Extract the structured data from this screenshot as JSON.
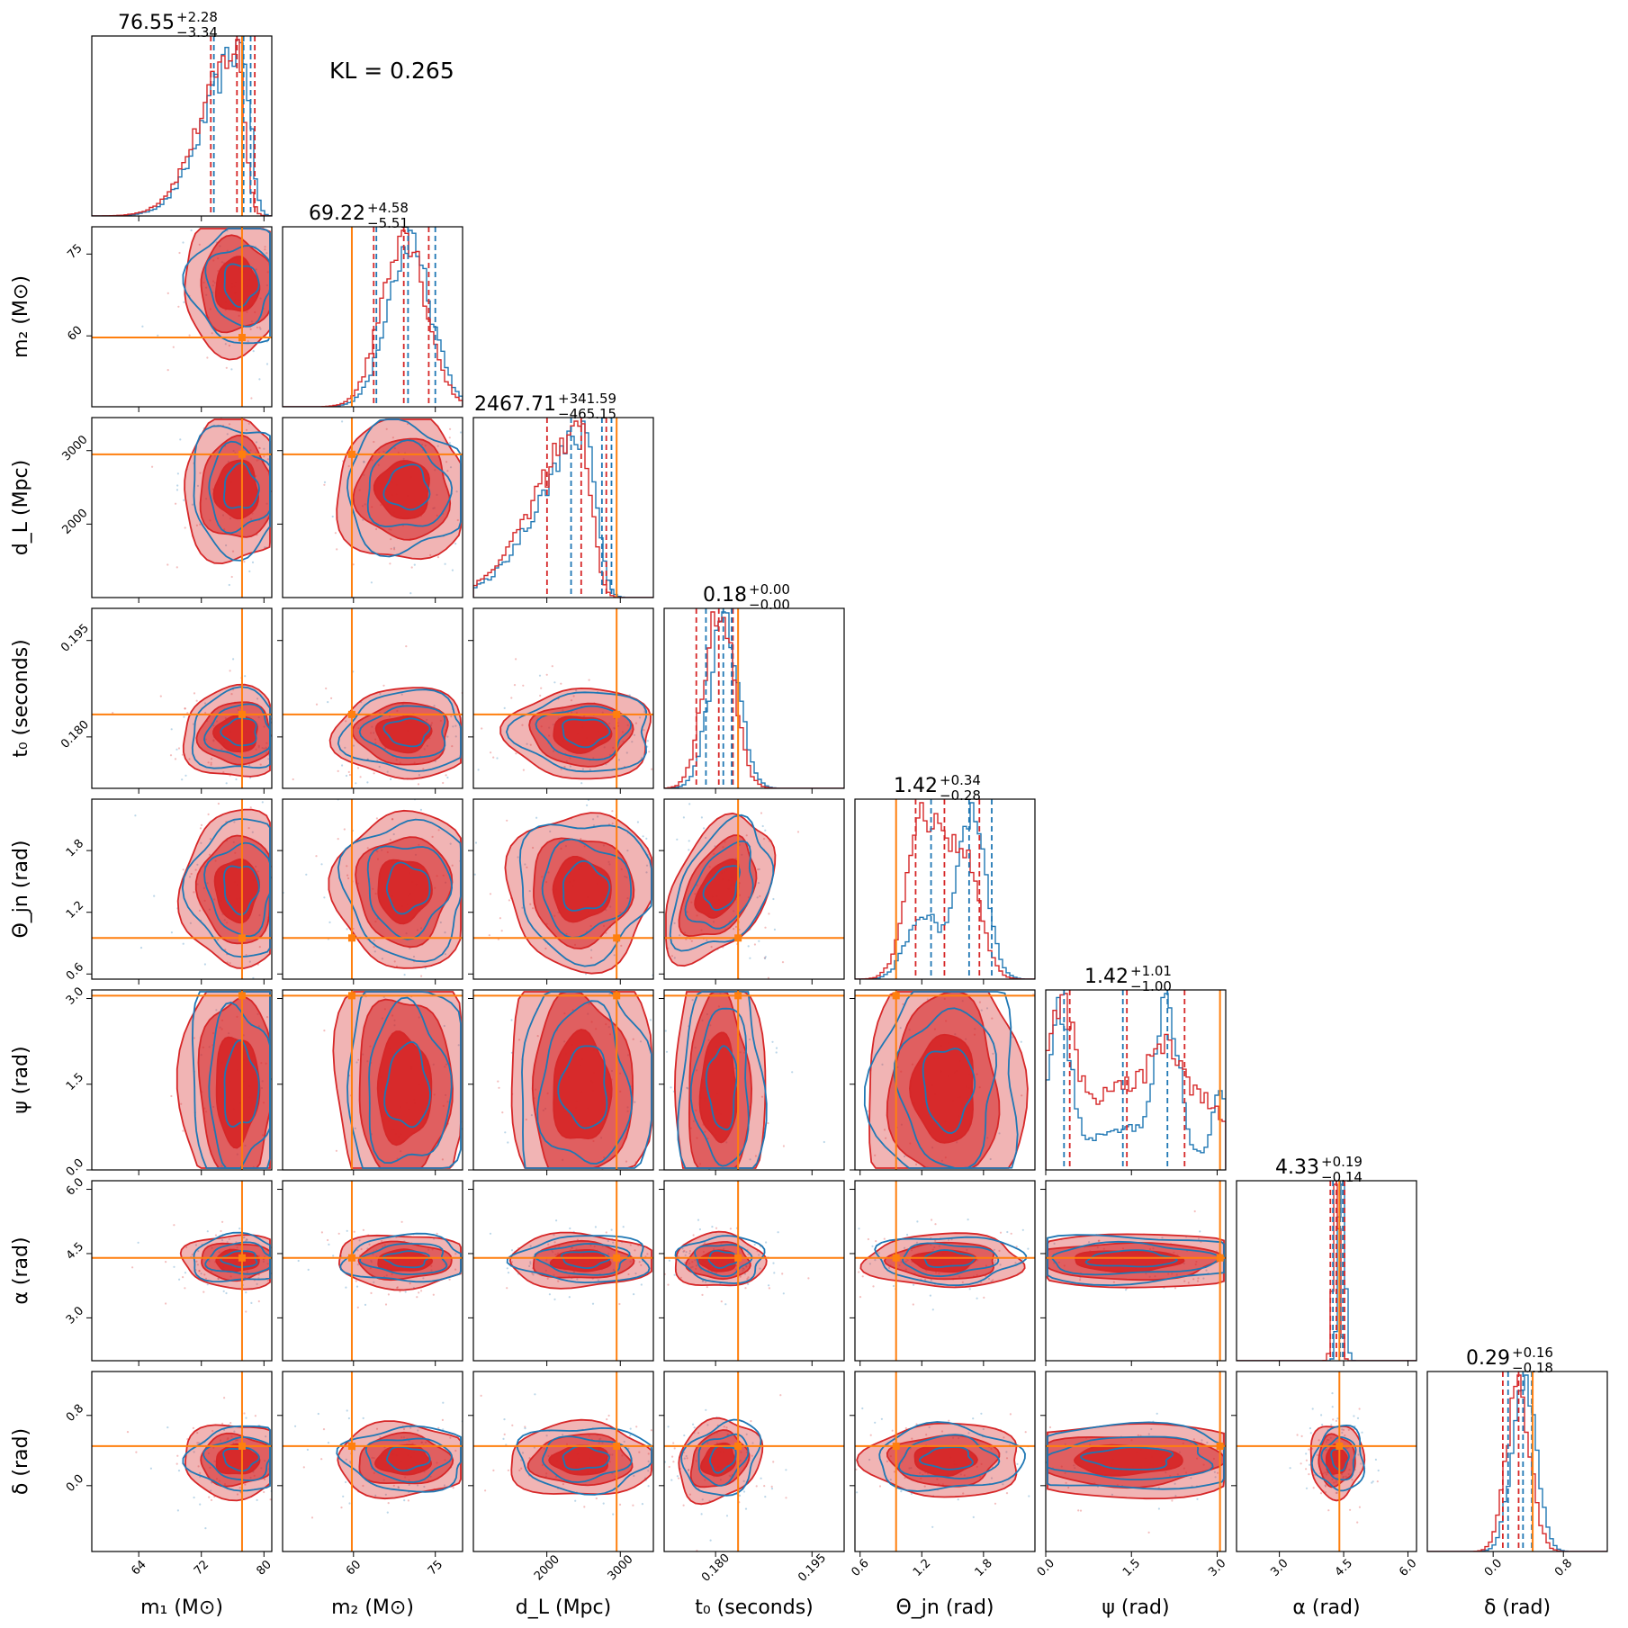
{
  "kl": "KL = 0.265",
  "colors": {
    "red": "#d62728",
    "blue": "#1f77b4",
    "truth": "#ff7f0e"
  },
  "chart_data": {
    "type": "corner",
    "parameters": [
      {
        "key": "m1",
        "label": "m₁ (M⊙)",
        "range": [
          58,
          81
        ],
        "ticks": [
          64,
          72,
          80
        ],
        "tick_labels": [
          "64",
          "72",
          "80"
        ],
        "truth": 77.2,
        "title": {
          "value": "76.55",
          "plus": "+2.28",
          "minus": "−3.34"
        },
        "red_q": [
          73.21,
          76.55,
          78.83
        ],
        "blue_q": [
          73.6,
          77.4,
          78.3
        ],
        "hist": {
          "shape": "skewleft",
          "center": 77.0,
          "width": 3.4
        }
      },
      {
        "key": "m2",
        "label": "m₂ (M⊙)",
        "range": [
          47,
          80
        ],
        "ticks": [
          60,
          75
        ],
        "tick_labels": [
          "60",
          "75"
        ],
        "truth": 59.7,
        "title": {
          "value": "69.22",
          "plus": "+4.58",
          "minus": "−5.51"
        },
        "red_q": [
          63.71,
          69.22,
          73.8
        ],
        "blue_q": [
          64.2,
          70.0,
          75.0
        ],
        "hist": {
          "shape": "gauss",
          "center": 69.5,
          "width": 5.0
        }
      },
      {
        "key": "dL",
        "label": "d_L (Mpc)",
        "range": [
          1000,
          3450
        ],
        "ticks": [
          2000,
          3000
        ],
        "tick_labels": [
          "2000",
          "3000"
        ],
        "truth": 2950,
        "title": {
          "value": "2467.71",
          "plus": "+341.59",
          "minus": "−465.15"
        },
        "red_q": [
          2002.56,
          2467.71,
          2809.3
        ],
        "blue_q": [
          2330,
          2750,
          2880
        ],
        "hist": {
          "shape": "skewleft",
          "center": 2650,
          "width": 420
        }
      },
      {
        "key": "t0",
        "label": "t₀ (seconds)",
        "range": [
          0.172,
          0.2
        ],
        "ticks": [
          0.18,
          0.195
        ],
        "tick_labels": [
          "0.180",
          "0.195"
        ],
        "truth": 0.1835,
        "title": {
          "value": "0.18",
          "plus": "+0.00",
          "minus": "−0.00"
        },
        "red_q": [
          0.177,
          0.1805,
          0.1827
        ],
        "blue_q": [
          0.1785,
          0.1812,
          0.1825
        ],
        "hist": {
          "shape": "gauss",
          "center": 0.181,
          "width": 1.6
        }
      },
      {
        "key": "theta",
        "label": "Θ_jn (rad)",
        "range": [
          0.55,
          2.3
        ],
        "ticks": [
          0.6,
          1.2,
          1.8
        ],
        "tick_labels": [
          "0.6",
          "1.2",
          "1.8"
        ],
        "truth": 0.95,
        "title": {
          "value": "1.42",
          "plus": "+0.34",
          "minus": "−0.28"
        },
        "red_q": [
          1.14,
          1.42,
          1.76
        ],
        "blue_q": [
          1.29,
          1.66,
          1.88
        ],
        "hist": {
          "shape": "bimodal",
          "center": 1.45,
          "width": 0.3
        }
      },
      {
        "key": "psi",
        "label": "ψ (rad)",
        "range": [
          0.0,
          3.15
        ],
        "ticks": [
          0.0,
          1.5,
          3.0
        ],
        "tick_labels": [
          "0.0",
          "1.5",
          "3.0"
        ],
        "truth": 3.05,
        "title": {
          "value": "1.42",
          "plus": "+1.01",
          "minus": "−1.00"
        },
        "red_q": [
          0.42,
          1.42,
          2.43
        ],
        "blue_q": [
          0.32,
          1.35,
          2.13
        ],
        "hist": {
          "shape": "multimodal",
          "center": 1.5,
          "width": 1.5
        }
      },
      {
        "key": "alpha",
        "label": "α (rad)",
        "range": [
          2.0,
          6.2
        ],
        "ticks": [
          3.0,
          4.5,
          6.0
        ],
        "tick_labels": [
          "3.0",
          "4.5",
          "6.0"
        ],
        "truth": 4.4,
        "title": {
          "value": "4.33",
          "plus": "+0.19",
          "minus": "−0.14"
        },
        "red_q": [
          4.19,
          4.33,
          4.52
        ],
        "blue_q": [
          4.25,
          4.42,
          4.48
        ],
        "hist": {
          "shape": "narrow",
          "center": 4.38,
          "width": 0.12
        }
      },
      {
        "key": "delta",
        "label": "δ (rad)",
        "range": [
          -0.75,
          1.3
        ],
        "ticks": [
          0.0,
          0.8
        ],
        "tick_labels": [
          "0.0",
          "0.8"
        ],
        "truth": 0.45,
        "title": {
          "value": "0.29",
          "plus": "+0.16",
          "minus": "−0.18"
        },
        "red_q": [
          0.11,
          0.29,
          0.45
        ],
        "blue_q": [
          0.17,
          0.34,
          0.44
        ],
        "hist": {
          "shape": "gauss",
          "center": 0.3,
          "width": 0.16
        }
      }
    ],
    "series": [
      {
        "name": "",
        "color": "#d62728",
        "style": "filled contours"
      },
      {
        "name": "",
        "color": "#1f77b4",
        "style": "line contours"
      }
    ]
  }
}
